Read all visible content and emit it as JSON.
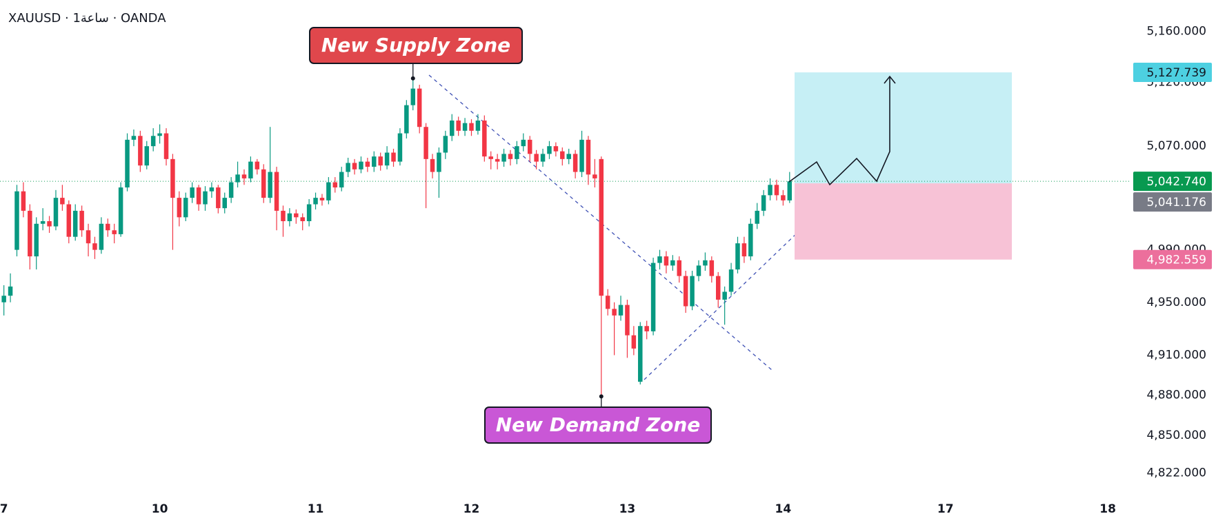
{
  "chart_data": {
    "type": "candlestick",
    "title": "XAUUSD · 1ساعة · OANDA",
    "up_color": "#089981",
    "down_color": "#f23645",
    "log_scale": true,
    "ylim": [
      4805,
      5185
    ],
    "xlim": [
      -0.6,
      173.6
    ],
    "yticks": [
      {
        "value": 4822,
        "label": "4,822.000"
      },
      {
        "value": 4850,
        "label": "4,850.000"
      },
      {
        "value": 4880,
        "label": "4,880.000"
      },
      {
        "value": 4910,
        "label": "4,910.000"
      },
      {
        "value": 4950,
        "label": "4,950.000"
      },
      {
        "value": 4990,
        "label": "4,990.000"
      },
      {
        "value": 5070,
        "label": "5,070.000"
      },
      {
        "value": 5120,
        "label": "5,120.000"
      },
      {
        "value": 5160,
        "label": "5,160.000"
      }
    ],
    "xticks": [
      0,
      24,
      48,
      72,
      96,
      120,
      145,
      170
    ],
    "xtick_labels": [
      "7",
      "10",
      "11",
      "12",
      "13",
      "14",
      "17",
      "18"
    ],
    "price_labels": [
      {
        "value": 5127.739,
        "label": "5,127.739",
        "color": "#4dd0e1",
        "text_color": "#131722"
      },
      {
        "value": 5042.74,
        "label": "5,042.740",
        "color": "#089950",
        "text_color": "#ffffff"
      },
      {
        "value": 5041.176,
        "label": "5,041.176",
        "color": "#787b86",
        "text_color": "#ffffff"
      },
      {
        "value": 4982.559,
        "label": "4,982.559",
        "color": "#ec6f9c",
        "text_color": "#ffffff"
      }
    ],
    "annotations": [
      {
        "text": "New Supply Zone",
        "color": "#e0474c"
      },
      {
        "text": "New Demand Zone",
        "color": "#c957d6"
      }
    ],
    "ohlc": [
      [
        4950,
        4963,
        4940,
        4955
      ],
      [
        4955,
        4972,
        4950,
        4962
      ],
      [
        4990,
        5040,
        4985,
        5035
      ],
      [
        5035,
        5042,
        5015,
        5020
      ],
      [
        5020,
        5025,
        4975,
        4985
      ],
      [
        4985,
        5015,
        4975,
        5010
      ],
      [
        5010,
        5022,
        5005,
        5012
      ],
      [
        5012,
        5016,
        5003,
        5008
      ],
      [
        5008,
        5036,
        5005,
        5030
      ],
      [
        5030,
        5040,
        5020,
        5025
      ],
      [
        5025,
        5028,
        4995,
        5000
      ],
      [
        5000,
        5025,
        4997,
        5020
      ],
      [
        5020,
        5024,
        5000,
        5005
      ],
      [
        5005,
        5010,
        4985,
        4995
      ],
      [
        4995,
        5000,
        4983,
        4990
      ],
      [
        4990,
        5015,
        4987,
        5010
      ],
      [
        5010,
        5014,
        5000,
        5005
      ],
      [
        5005,
        5010,
        4995,
        5002
      ],
      [
        5002,
        5042,
        5000,
        5038
      ],
      [
        5038,
        5080,
        5035,
        5075
      ],
      [
        5075,
        5083,
        5070,
        5078
      ],
      [
        5078,
        5082,
        5050,
        5055
      ],
      [
        5055,
        5074,
        5052,
        5070
      ],
      [
        5070,
        5084,
        5066,
        5078
      ],
      [
        5078,
        5087,
        5072,
        5080
      ],
      [
        5080,
        5084,
        5055,
        5060
      ],
      [
        5060,
        5064,
        4990,
        5030
      ],
      [
        5030,
        5035,
        5008,
        5015
      ],
      [
        5015,
        5034,
        5012,
        5030
      ],
      [
        5030,
        5042,
        5026,
        5038
      ],
      [
        5038,
        5040,
        5020,
        5025
      ],
      [
        5025,
        5039,
        5020,
        5035
      ],
      [
        5035,
        5042,
        5030,
        5038
      ],
      [
        5038,
        5040,
        5018,
        5022
      ],
      [
        5022,
        5034,
        5018,
        5030
      ],
      [
        5030,
        5046,
        5026,
        5042
      ],
      [
        5042,
        5058,
        5038,
        5048
      ],
      [
        5048,
        5052,
        5040,
        5045
      ],
      [
        5045,
        5062,
        5042,
        5058
      ],
      [
        5058,
        5060,
        5048,
        5052
      ],
      [
        5052,
        5056,
        5026,
        5030
      ],
      [
        5030,
        5085,
        5026,
        5050
      ],
      [
        5050,
        5054,
        5005,
        5020
      ],
      [
        5020,
        5024,
        5000,
        5012
      ],
      [
        5012,
        5022,
        5008,
        5018
      ],
      [
        5018,
        5021,
        5010,
        5015
      ],
      [
        5015,
        5018,
        5005,
        5012
      ],
      [
        5012,
        5029,
        5008,
        5025
      ],
      [
        5025,
        5034,
        5021,
        5030
      ],
      [
        5030,
        5033,
        5024,
        5028
      ],
      [
        5028,
        5046,
        5025,
        5042
      ],
      [
        5042,
        5046,
        5034,
        5038
      ],
      [
        5038,
        5054,
        5035,
        5050
      ],
      [
        5050,
        5061,
        5046,
        5057
      ],
      [
        5057,
        5060,
        5048,
        5052
      ],
      [
        5052,
        5062,
        5049,
        5058
      ],
      [
        5058,
        5061,
        5050,
        5054
      ],
      [
        5054,
        5066,
        5050,
        5062
      ],
      [
        5062,
        5065,
        5051,
        5055
      ],
      [
        5055,
        5070,
        5052,
        5065
      ],
      [
        5065,
        5068,
        5054,
        5058
      ],
      [
        5058,
        5084,
        5055,
        5080
      ],
      [
        5080,
        5106,
        5076,
        5102
      ],
      [
        5102,
        5123,
        5098,
        5115
      ],
      [
        5115,
        5118,
        5080,
        5085
      ],
      [
        5085,
        5088,
        5022,
        5060
      ],
      [
        5060,
        5064,
        5045,
        5050
      ],
      [
        5050,
        5069,
        5030,
        5065
      ],
      [
        5065,
        5082,
        5060,
        5078
      ],
      [
        5078,
        5095,
        5074,
        5090
      ],
      [
        5090,
        5093,
        5078,
        5082
      ],
      [
        5082,
        5092,
        5078,
        5088
      ],
      [
        5088,
        5091,
        5078,
        5082
      ],
      [
        5082,
        5095,
        5079,
        5090
      ],
      [
        5090,
        5094,
        5058,
        5062
      ],
      [
        5062,
        5066,
        5052,
        5060
      ],
      [
        5060,
        5064,
        5052,
        5058
      ],
      [
        5058,
        5068,
        5054,
        5064
      ],
      [
        5064,
        5067,
        5055,
        5060
      ],
      [
        5060,
        5074,
        5056,
        5070
      ],
      [
        5070,
        5080,
        5066,
        5075
      ],
      [
        5075,
        5078,
        5058,
        5064
      ],
      [
        5064,
        5067,
        5052,
        5058
      ],
      [
        5058,
        5068,
        5054,
        5064
      ],
      [
        5064,
        5074,
        5060,
        5070
      ],
      [
        5070,
        5073,
        5062,
        5066
      ],
      [
        5066,
        5069,
        5055,
        5060
      ],
      [
        5060,
        5068,
        5056,
        5064
      ],
      [
        5064,
        5067,
        5045,
        5050
      ],
      [
        5050,
        5082,
        5046,
        5075
      ],
      [
        5075,
        5078,
        5040,
        5048
      ],
      [
        5048,
        5060,
        5038,
        5045
      ],
      [
        5060,
        5062,
        4879,
        4955
      ],
      [
        4955,
        4960,
        4940,
        4945
      ],
      [
        4945,
        4950,
        4910,
        4940
      ],
      [
        4940,
        4955,
        4936,
        4948
      ],
      [
        4948,
        4952,
        4908,
        4925
      ],
      [
        4925,
        4932,
        4910,
        4915
      ],
      [
        4890,
        4935,
        4888,
        4932
      ],
      [
        4932,
        4936,
        4922,
        4928
      ],
      [
        4928,
        4984,
        4925,
        4980
      ],
      [
        4980,
        4990,
        4975,
        4985
      ],
      [
        4985,
        4989,
        4972,
        4978
      ],
      [
        4978,
        4986,
        4974,
        4982
      ],
      [
        4982,
        4985,
        4965,
        4970
      ],
      [
        4970,
        4974,
        4942,
        4947
      ],
      [
        4947,
        4974,
        4944,
        4970
      ],
      [
        4970,
        4982,
        4966,
        4978
      ],
      [
        4978,
        4988,
        4974,
        4982
      ],
      [
        4982,
        4985,
        4965,
        4970
      ],
      [
        4970,
        4973,
        4946,
        4952
      ],
      [
        4952,
        4962,
        4933,
        4958
      ],
      [
        4958,
        4980,
        4955,
        4975
      ],
      [
        4975,
        5000,
        4972,
        4995
      ],
      [
        4995,
        5000,
        4980,
        4985
      ],
      [
        4985,
        5014,
        4982,
        5010
      ],
      [
        5010,
        5026,
        5006,
        5020
      ],
      [
        5020,
        5036,
        5016,
        5032
      ],
      [
        5032,
        5045,
        5028,
        5040
      ],
      [
        5040,
        5044,
        5028,
        5032
      ],
      [
        5032,
        5036,
        5024,
        5028
      ],
      [
        5028,
        5050,
        5026,
        5042.74
      ]
    ]
  }
}
